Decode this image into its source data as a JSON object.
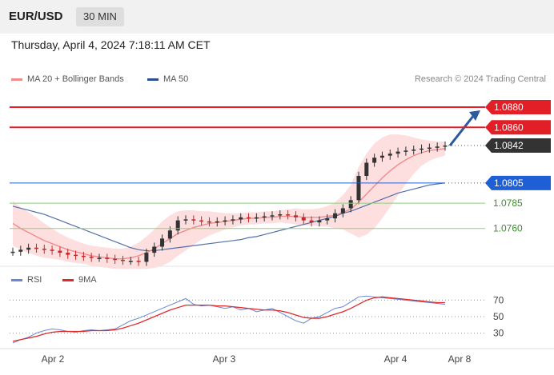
{
  "header": {
    "symbol": "EUR/USD",
    "timeframe": "30 MIN",
    "datetime": "Thursday, April 4, 2024 7:18:11 AM CET"
  },
  "legend": {
    "ma20": "MA 20 + Bollinger Bands",
    "ma50": "MA 50",
    "research": "Research © 2024 Trading Central"
  },
  "rsi_legend": {
    "rsi": "RSI",
    "ma9": "9MA"
  },
  "colors": {
    "red": "#e21f26",
    "blue": "#1f5fd6",
    "green": "#6aaf55",
    "ma20": "#f28b8b",
    "bands": "#fdd9d9",
    "ma50": "#5570a8",
    "rsi": "#6a86d6",
    "rsi_ma": "#e02a2a",
    "candle_up": "#333333",
    "candle_dn": "#c62828",
    "arrow": "#2c5aa0"
  },
  "chart_data": [
    {
      "type": "line",
      "title": "EUR/USD 30 MIN",
      "x_ticks": [
        "Apr 2",
        "Apr 3",
        "Apr 4",
        "Apr 8"
      ],
      "ylim": [
        1.0725,
        1.0895
      ],
      "levels": [
        {
          "value": 1.088,
          "label": "1.0880",
          "kind": "resistance"
        },
        {
          "value": 1.086,
          "label": "1.0860",
          "kind": "resistance"
        },
        {
          "value": 1.0842,
          "label": "1.0842",
          "kind": "last"
        },
        {
          "value": 1.0805,
          "label": "1.0805",
          "kind": "support"
        },
        {
          "value": 1.0785,
          "label": "1.0785",
          "kind": "minor"
        },
        {
          "value": 1.076,
          "label": "1.0760",
          "kind": "minor"
        }
      ],
      "price": [
        1.0737,
        1.0739,
        1.0741,
        1.074,
        1.0739,
        1.0738,
        1.0736,
        1.0734,
        1.0733,
        1.0732,
        1.0731,
        1.0731,
        1.073,
        1.0729,
        1.0728,
        1.0728,
        1.0727,
        1.0736,
        1.0742,
        1.075,
        1.0758,
        1.0768,
        1.0769,
        1.0768,
        1.0767,
        1.0766,
        1.0767,
        1.0768,
        1.0769,
        1.0771,
        1.077,
        1.0771,
        1.0772,
        1.0773,
        1.0774,
        1.0773,
        1.0771,
        1.0768,
        1.0766,
        1.0768,
        1.077,
        1.0775,
        1.078,
        1.0788,
        1.0812,
        1.0825,
        1.083,
        1.0832,
        1.0834,
        1.0836,
        1.0837,
        1.0838,
        1.0839,
        1.084,
        1.0841,
        1.0842
      ],
      "ma20": [
        1.0765,
        1.076,
        1.0756,
        1.0752,
        1.0748,
        1.0745,
        1.0742,
        1.0739,
        1.0737,
        1.0735,
        1.0733,
        1.0732,
        1.0731,
        1.073,
        1.073,
        1.0731,
        1.0733,
        1.0736,
        1.074,
        1.0745,
        1.075,
        1.0755,
        1.0758,
        1.0761,
        1.0763,
        1.0765,
        1.0766,
        1.0767,
        1.0768,
        1.0769,
        1.077,
        1.077,
        1.0771,
        1.0771,
        1.0772,
        1.0772,
        1.0772,
        1.0771,
        1.0771,
        1.0771,
        1.0772,
        1.0773,
        1.0776,
        1.0779,
        1.0786,
        1.0794,
        1.0802,
        1.081,
        1.0817,
        1.0823,
        1.0828,
        1.0832,
        1.0835,
        1.0837,
        1.0838,
        1.0839
      ],
      "band_width": [
        0.0022,
        0.0021,
        0.002,
        0.0019,
        0.0017,
        0.0015,
        0.0013,
        0.0012,
        0.0011,
        0.001,
        0.001,
        0.001,
        0.001,
        0.001,
        0.001,
        0.0011,
        0.0013,
        0.0016,
        0.0019,
        0.0022,
        0.0023,
        0.0022,
        0.002,
        0.0017,
        0.0014,
        0.0012,
        0.001,
        0.0008,
        0.0007,
        0.0006,
        0.0006,
        0.0006,
        0.0006,
        0.0006,
        0.0006,
        0.0007,
        0.0008,
        0.0008,
        0.0008,
        0.0009,
        0.001,
        0.0013,
        0.0017,
        0.0024,
        0.0035,
        0.004,
        0.0042,
        0.004,
        0.0036,
        0.003,
        0.0024,
        0.0018,
        0.0013,
        0.001,
        0.0008,
        0.0007
      ],
      "ma50": [
        1.0782,
        1.078,
        1.0778,
        1.0776,
        1.0774,
        1.0771,
        1.0768,
        1.0765,
        1.0762,
        1.0759,
        1.0756,
        1.0753,
        1.075,
        1.0747,
        1.0744,
        1.0741,
        1.0739,
        1.0738,
        1.0738,
        1.0739,
        1.074,
        1.0741,
        1.0742,
        1.0743,
        1.0744,
        1.0745,
        1.0746,
        1.0747,
        1.0748,
        1.0749,
        1.0751,
        1.0752,
        1.0754,
        1.0756,
        1.0758,
        1.076,
        1.0762,
        1.0764,
        1.0766,
        1.0768,
        1.077,
        1.0772,
        1.0775,
        1.0777,
        1.078,
        1.0783,
        1.0786,
        1.0789,
        1.0792,
        1.0795,
        1.0797,
        1.0799,
        1.0801,
        1.0803,
        1.0804,
        1.0805
      ],
      "forecast": {
        "from": 1.0842,
        "to": 1.088
      }
    },
    {
      "type": "line",
      "title": "RSI",
      "ylim": [
        15,
        85
      ],
      "y_ticks": [
        70,
        50,
        30
      ],
      "series": [
        {
          "name": "RSI",
          "values": [
            18,
            22,
            25,
            30,
            33,
            35,
            34,
            32,
            31,
            33,
            34,
            33,
            34,
            35,
            40,
            45,
            48,
            52,
            56,
            60,
            64,
            68,
            72,
            65,
            63,
            64,
            62,
            60,
            62,
            58,
            60,
            56,
            58,
            60,
            55,
            50,
            45,
            42,
            48,
            50,
            55,
            60,
            62,
            68,
            74,
            75,
            74,
            73,
            72,
            71,
            70,
            69,
            68,
            67,
            66,
            65
          ]
        },
        {
          "name": "9MA",
          "values": [
            20,
            22,
            24,
            26,
            29,
            31,
            32,
            32,
            32,
            32,
            33,
            33,
            33,
            34,
            36,
            39,
            42,
            46,
            50,
            54,
            58,
            61,
            64,
            64,
            64,
            64,
            63,
            63,
            62,
            61,
            60,
            59,
            58,
            58,
            57,
            55,
            52,
            49,
            48,
            48,
            50,
            53,
            56,
            60,
            65,
            70,
            73,
            74,
            73,
            72,
            71,
            70,
            69,
            68,
            67,
            67
          ]
        }
      ]
    }
  ]
}
